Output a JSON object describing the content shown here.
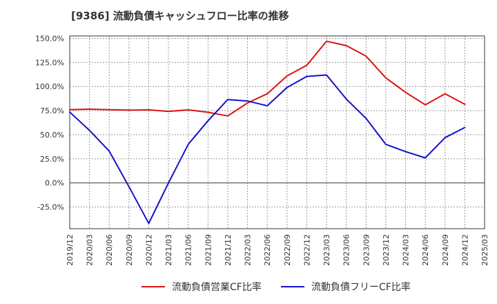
{
  "chart_data": {
    "type": "line",
    "title": "[9386]  流動負債キャッシュフロー比率の推移",
    "xlabel": "",
    "ylabel": "",
    "x": [
      "2019/12",
      "2020/03",
      "2020/06",
      "2020/09",
      "2020/12",
      "2021/03",
      "2021/06",
      "2021/09",
      "2021/12",
      "2022/03",
      "2022/06",
      "2022/09",
      "2022/12",
      "2023/03",
      "2023/06",
      "2023/09",
      "2023/12",
      "2024/03",
      "2024/06",
      "2024/09",
      "2024/12",
      "2025/03"
    ],
    "ylim": [
      -47.5,
      152.5
    ],
    "yticks": [
      150,
      125,
      100,
      75,
      50,
      25,
      0,
      -25
    ],
    "ytick_labels": [
      "150.0%",
      "125.0%",
      "100.0%",
      "75.0%",
      "50.0%",
      "25.0%",
      "0.0%",
      "-25.0%"
    ],
    "grid": true,
    "legend_position": "bottom",
    "series": [
      {
        "name": "流動負債営業CF比率",
        "color": "#dd1111",
        "values": [
          76,
          76.5,
          76,
          75.5,
          75.8,
          74.2,
          75.8,
          73.3,
          69.5,
          83,
          92.5,
          111,
          122,
          147,
          142.5,
          131.5,
          109,
          94,
          81,
          92.5,
          81.5,
          null
        ]
      },
      {
        "name": "流動負債フリーCF比率",
        "color": "#1111cc",
        "values": [
          73.5,
          54.5,
          33,
          -4,
          -42,
          0,
          40,
          64.5,
          86.5,
          85,
          80,
          99,
          110.5,
          112,
          87,
          67,
          40,
          32.5,
          26,
          47,
          57.5,
          null
        ]
      }
    ]
  }
}
